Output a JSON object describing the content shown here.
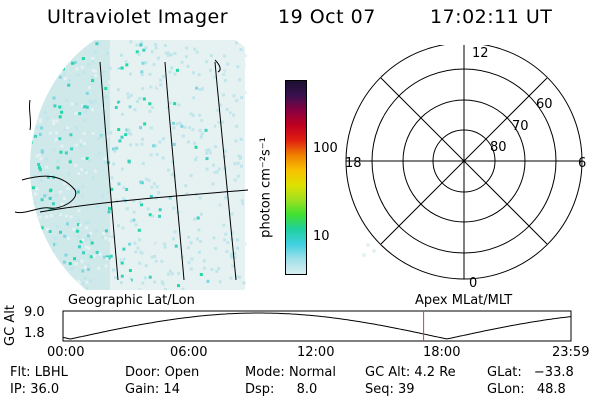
{
  "header": {
    "title": "Ultraviolet Imager",
    "date": "19 Oct 07",
    "time": "17:02:11 UT"
  },
  "colorbar": {
    "unit_label": "photon cm⁻²s⁻¹",
    "ticks": [
      "100",
      "10"
    ],
    "colors_top_to_bottom": [
      "#1a1030",
      "#3a1050",
      "#8a0040",
      "#c00020",
      "#e02010",
      "#f08000",
      "#f8c000",
      "#e0e000",
      "#a0e020",
      "#40e030",
      "#20d0a0",
      "#40d0e0",
      "#a0e0e8",
      "#d8eef0"
    ]
  },
  "polar_grid": {
    "mlt_labels": [
      "12",
      "18",
      "6",
      "0"
    ],
    "lat_labels": [
      "60",
      "70",
      "80"
    ]
  },
  "timeline": {
    "left_label": "Geographic Lat/Lon",
    "right_label": "Apex MLat/MLT",
    "axis_title": "GC Alt",
    "y_ticks": [
      "9.0",
      "1.8"
    ],
    "x_ticks": [
      "00:00",
      "06:00",
      "12:00",
      "18:00",
      "23:59"
    ],
    "marker_color": "#d04040"
  },
  "status": {
    "row1": [
      {
        "label": "Flt:",
        "value": "LBHL"
      },
      {
        "label": "Door:",
        "value": "Open"
      },
      {
        "label": "Mode:",
        "value": "Normal"
      },
      {
        "label": "GC Alt:",
        "value": "4.2 Re"
      },
      {
        "label": "GLat:",
        "value": "−33.8"
      }
    ],
    "row2": [
      {
        "label": "IP:",
        "value": "36.0"
      },
      {
        "label": "Gain:",
        "value": "14"
      },
      {
        "label": "Dsp:",
        "value": "8.0"
      },
      {
        "label": "Seq:",
        "value": "39"
      },
      {
        "label": "GLon:",
        "value": "48.8"
      }
    ]
  }
}
